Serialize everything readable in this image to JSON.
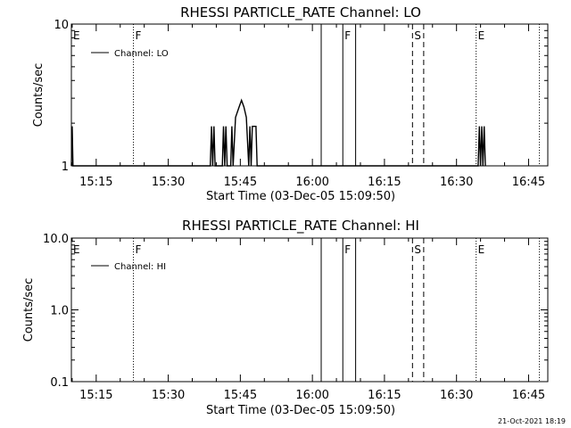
{
  "timestamp": "21-Oct-2021 18:19",
  "colors": {
    "background": "#ffffff",
    "foreground": "#000000"
  },
  "chart_data": [
    {
      "type": "line",
      "title": "RHESSI PARTICLE_RATE Channel: LO",
      "xlabel": "Start Time (03-Dec-05 15:09:50)",
      "ylabel": "Counts/sec",
      "y_scale": "log",
      "xlim": [
        "15:09:50",
        "16:49:00"
      ],
      "ylim": [
        1,
        10
      ],
      "x_tick_labels": [
        "15:15",
        "15:30",
        "15:45",
        "16:00",
        "16:15",
        "16:30",
        "16:45"
      ],
      "y_tick_labels": [
        "1",
        "10"
      ],
      "legend": {
        "position": "top-left",
        "entries": [
          "Channel: LO"
        ]
      },
      "series": [
        {
          "name": "Channel: LO",
          "points": [
            [
              "15:09:50",
              1
            ],
            [
              "15:10:00",
              1.9
            ],
            [
              "15:10:10",
              1
            ],
            [
              "15:38:45",
              1
            ],
            [
              "15:39:00",
              1.9
            ],
            [
              "15:39:15",
              1
            ],
            [
              "15:39:30",
              1.9
            ],
            [
              "15:39:45",
              1
            ],
            [
              "15:41:15",
              1
            ],
            [
              "15:41:30",
              1.9
            ],
            [
              "15:41:45",
              1
            ],
            [
              "15:42:00",
              1.9
            ],
            [
              "15:42:15",
              1
            ],
            [
              "15:43:00",
              1
            ],
            [
              "15:43:15",
              1.9
            ],
            [
              "15:43:30",
              1
            ],
            [
              "15:44:00",
              2.2
            ],
            [
              "15:44:45",
              2.6
            ],
            [
              "15:45:15",
              2.9
            ],
            [
              "15:45:45",
              2.6
            ],
            [
              "15:46:15",
              2.2
            ],
            [
              "15:46:45",
              1
            ],
            [
              "15:47:00",
              1.9
            ],
            [
              "15:47:15",
              1
            ],
            [
              "15:47:30",
              1.9
            ],
            [
              "15:48:15",
              1.9
            ],
            [
              "15:48:30",
              1
            ],
            [
              "16:34:30",
              1
            ],
            [
              "16:34:45",
              1.9
            ],
            [
              "16:35:00",
              1
            ],
            [
              "16:35:15",
              1.9
            ],
            [
              "16:35:30",
              1
            ],
            [
              "16:35:45",
              1.9
            ],
            [
              "16:36:00",
              1
            ]
          ]
        }
      ],
      "markers": [
        {
          "label": "E",
          "time": "15:09:50",
          "style": "solid"
        },
        {
          "label": "F",
          "time": "15:22:45",
          "style": "dotted"
        },
        {
          "label": "",
          "time": "16:01:50",
          "style": "solid"
        },
        {
          "label": "F",
          "time": "16:06:20",
          "style": "solid"
        },
        {
          "label": "",
          "time": "16:09:00",
          "style": "solid"
        },
        {
          "label": "S",
          "time": "16:20:50",
          "style": "dashed"
        },
        {
          "label": "",
          "time": "16:23:10",
          "style": "dashed"
        },
        {
          "label": "E",
          "time": "16:34:05",
          "style": "dotted"
        },
        {
          "label": "",
          "time": "16:47:15",
          "style": "dotted"
        }
      ]
    },
    {
      "type": "line",
      "title": "RHESSI PARTICLE_RATE Channel: HI",
      "xlabel": "Start Time (03-Dec-05 15:09:50)",
      "ylabel": "Counts/sec",
      "y_scale": "log",
      "xlim": [
        "15:09:50",
        "16:49:00"
      ],
      "ylim": [
        0.1,
        10
      ],
      "x_tick_labels": [
        "15:15",
        "15:30",
        "15:45",
        "16:00",
        "16:15",
        "16:30",
        "16:45"
      ],
      "y_tick_labels": [
        "0.1",
        "1.0",
        "10.0"
      ],
      "legend": {
        "position": "top-left",
        "entries": [
          "Channel: HI"
        ]
      },
      "series": [
        {
          "name": "Channel: HI",
          "points": []
        }
      ],
      "markers": [
        {
          "label": "E",
          "time": "15:09:50",
          "style": "solid"
        },
        {
          "label": "F",
          "time": "15:22:45",
          "style": "dotted"
        },
        {
          "label": "",
          "time": "16:01:50",
          "style": "solid"
        },
        {
          "label": "F",
          "time": "16:06:20",
          "style": "solid"
        },
        {
          "label": "",
          "time": "16:09:00",
          "style": "solid"
        },
        {
          "label": "S",
          "time": "16:20:50",
          "style": "dashed"
        },
        {
          "label": "",
          "time": "16:23:10",
          "style": "dashed"
        },
        {
          "label": "E",
          "time": "16:34:05",
          "style": "dotted"
        },
        {
          "label": "",
          "time": "16:47:15",
          "style": "dotted"
        }
      ]
    }
  ]
}
